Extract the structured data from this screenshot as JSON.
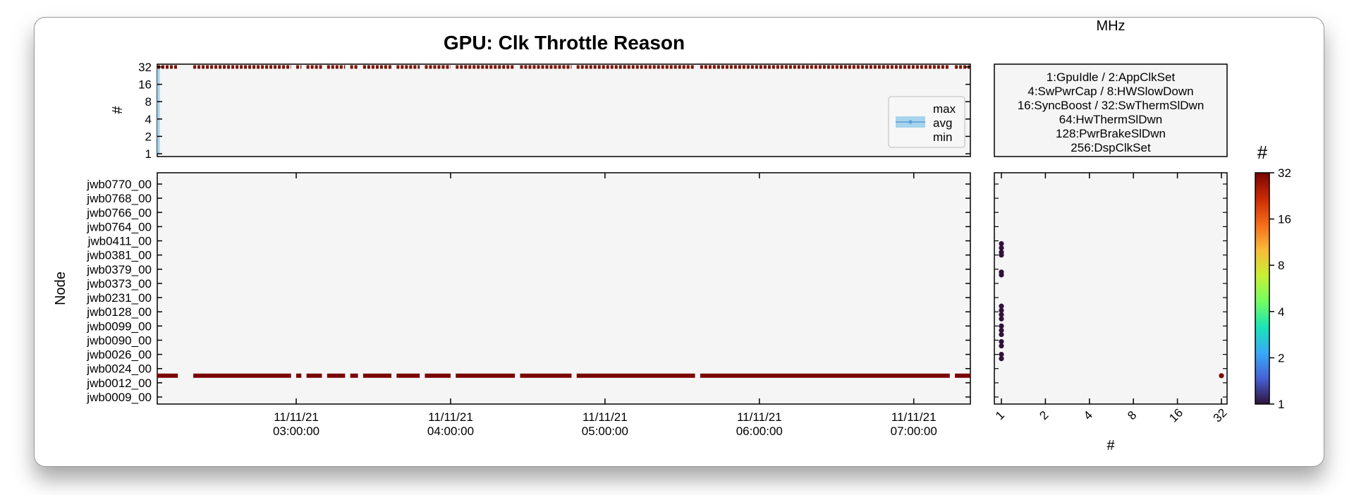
{
  "colors": {
    "panel_bg": "#f5f5f5",
    "line_series": "#7a1404",
    "band_fill": "#a6d4ec",
    "legend_line": "#5b9bd5",
    "colormap": [
      "#30123b",
      "#4662d7",
      "#36aaf9",
      "#1ae4b6",
      "#72fe5e",
      "#c8ef34",
      "#faba39",
      "#f66b19",
      "#ca2a04",
      "#7a0403"
    ]
  },
  "chart_data": [
    {
      "id": "timeline",
      "type": "line",
      "title": "GPU: Clk Throttle Reason",
      "ylabel": "#",
      "yscale": "log2",
      "yticks": [
        "1",
        "2",
        "4",
        "8",
        "16",
        "32"
      ],
      "ylim": [
        1,
        32
      ],
      "xlim": [
        "2021-11-11T02:06:00",
        "2021-11-11T07:22:00"
      ],
      "legend": {
        "placement": "right",
        "entries": [
          "max",
          "avg",
          "min"
        ]
      },
      "series": [
        {
          "name": "avg",
          "y": 32,
          "segments": [
            [
              "02:06",
              "02:14"
            ],
            [
              "02:20",
              "02:58"
            ],
            [
              "03:00",
              "03:02"
            ],
            [
              "03:04",
              "03:10"
            ],
            [
              "03:12",
              "03:19"
            ],
            [
              "03:21",
              "03:24"
            ],
            [
              "03:26",
              "03:37"
            ],
            [
              "03:39",
              "03:48"
            ],
            [
              "03:50",
              "04:00"
            ],
            [
              "04:02",
              "04:25"
            ],
            [
              "04:27",
              "04:47"
            ],
            [
              "04:49",
              "05:35"
            ],
            [
              "05:37",
              "07:14"
            ],
            [
              "07:16",
              "07:22"
            ]
          ]
        }
      ],
      "band": {
        "x": [
          "02:06",
          "02:07"
        ],
        "ylim": [
          1,
          32
        ]
      }
    },
    {
      "id": "heatmap",
      "type": "heatmap",
      "ylabel": "Node",
      "xticks": [
        "11/11/21\n03:00:00",
        "11/11/21\n04:00:00",
        "11/11/21\n05:00:00",
        "11/11/21\n06:00:00",
        "11/11/21\n07:00:00"
      ],
      "xtick_times": [
        "03:00",
        "04:00",
        "05:00",
        "06:00",
        "07:00"
      ],
      "nodes": [
        "jwb0770_00",
        "jwb0768_00",
        "jwb0766_00",
        "jwb0764_00",
        "jwb0411_00",
        "jwb0381_00",
        "jwb0379_00",
        "jwb0373_00",
        "jwb0231_00",
        "jwb0128_00",
        "jwb0099_00",
        "jwb0090_00",
        "jwb0026_00",
        "jwb0024_00",
        "jwb0012_00",
        "jwb0009_00"
      ],
      "rows": [
        {
          "row": 13.5,
          "value": 32,
          "segments": [
            [
              "02:06",
              "02:14"
            ],
            [
              "02:20",
              "02:58"
            ],
            [
              "03:00",
              "03:02"
            ],
            [
              "03:04",
              "03:10"
            ],
            [
              "03:12",
              "03:19"
            ],
            [
              "03:21",
              "03:24"
            ],
            [
              "03:26",
              "03:37"
            ],
            [
              "03:39",
              "03:48"
            ],
            [
              "03:50",
              "04:00"
            ],
            [
              "04:02",
              "04:25"
            ],
            [
              "04:27",
              "04:47"
            ],
            [
              "04:49",
              "05:35"
            ],
            [
              "05:37",
              "07:14"
            ],
            [
              "07:16",
              "07:22"
            ]
          ]
        }
      ]
    },
    {
      "id": "histogram",
      "type": "scatter",
      "xlabel": "#",
      "xscale": "log2",
      "xticks": [
        "1",
        "2",
        "4",
        "8",
        "16",
        "32"
      ],
      "xlim": [
        1,
        32
      ],
      "points": [
        {
          "x": 1,
          "rows": [
            4.2,
            4.5,
            4.8,
            5.0,
            6.2,
            6.4,
            8.6,
            8.9,
            9.2,
            9.5,
            10.0,
            10.3,
            10.6,
            11.1,
            11.4,
            12.0,
            12.3
          ],
          "value": 1
        },
        {
          "x": 32,
          "rows": [
            13.5
          ],
          "value": 32
        }
      ]
    }
  ],
  "side_panel": {
    "title": "MHz",
    "legend_lines": [
      "1:GpuIdle / 2:AppClkSet",
      "4:SwPwrCap / 8:HWSlowDown",
      "16:SyncBoost / 32:SwThermSlDwn",
      "64:HwThermSlDwn",
      "128:PwrBrakeSlDwn",
      "256:DspClkSet"
    ]
  },
  "colorbar": {
    "label": "#",
    "scale": "log2",
    "ticks": [
      "1",
      "2",
      "4",
      "8",
      "16",
      "32"
    ],
    "range": [
      1,
      32
    ]
  }
}
